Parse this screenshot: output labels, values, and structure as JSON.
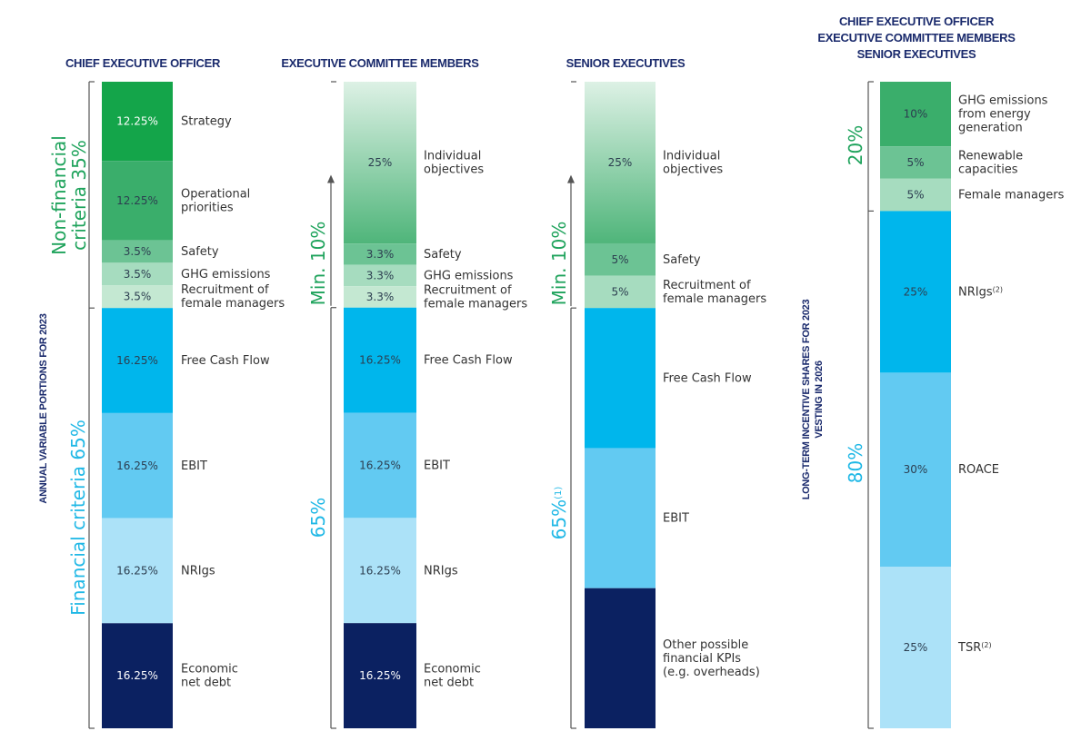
{
  "colors": {
    "green_dark": "#14a54a",
    "green_mid": "#3aae6b",
    "green_light": "#6cc394",
    "green_pale": "#a6dcbf",
    "green_paler": "#c4e8d2",
    "blue_cyan": "#00b6ec",
    "blue_sky": "#62caf2",
    "blue_pale": "#ace2f8",
    "navy": "#0b2161",
    "header": "#1a2a6c",
    "side_green": "#1fa35c",
    "side_blue": "#20b8e6"
  },
  "annual_axis_label": "ANNUAL VARIABLE PORTIONS FOR 2023",
  "long_term_axis_label_1": "LONG-TERM INCENTIVE SHARES FOR 2023",
  "long_term_axis_label_2": "VESTING IN 2026",
  "chart_data": [
    {
      "type": "bar",
      "stacked": true,
      "title": "CHIEF EXECUTIVE OFFICER",
      "groups": [
        {
          "label": "Non-financial criteria 35%",
          "label_line1": "Non-financial",
          "label_line2": "criteria 35%",
          "color": "green"
        },
        {
          "label": "Financial criteria 65%",
          "color": "blue"
        }
      ],
      "segments": [
        {
          "name": "Strategy",
          "value": 12.25,
          "value_label": "12.25%",
          "lines": [
            "Strategy"
          ],
          "color": "#14a54a"
        },
        {
          "name": "Operational priorities",
          "value": 12.25,
          "value_label": "12.25%",
          "lines": [
            "Operational",
            "priorities"
          ],
          "color": "#3aae6b"
        },
        {
          "name": "Safety",
          "value": 3.5,
          "value_label": "3.5%",
          "lines": [
            "Safety"
          ],
          "color": "#6cc394"
        },
        {
          "name": "GHG emissions",
          "value": 3.5,
          "value_label": "3.5%",
          "lines": [
            "GHG emissions"
          ],
          "color": "#a6dcbf"
        },
        {
          "name": "Recruitment of female managers",
          "value": 3.5,
          "value_label": "3.5%",
          "lines": [
            "Recruitment of",
            "female managers"
          ],
          "color": "#c4e8d2"
        },
        {
          "name": "Free Cash Flow",
          "value": 16.25,
          "value_label": "16.25%",
          "lines": [
            "Free Cash Flow"
          ],
          "color": "#00b6ec"
        },
        {
          "name": "EBIT",
          "value": 16.25,
          "value_label": "16.25%",
          "lines": [
            "EBIT"
          ],
          "color": "#62caf2"
        },
        {
          "name": "NRIgs",
          "value": 16.25,
          "value_label": "16.25%",
          "lines": [
            "NRIgs"
          ],
          "color": "#ace2f8"
        },
        {
          "name": "Economic net debt",
          "value": 16.25,
          "value_label": "16.25%",
          "lines": [
            "Economic",
            "net debt"
          ],
          "color": "#0b2161"
        }
      ]
    },
    {
      "type": "bar",
      "stacked": true,
      "title": "EXECUTIVE COMMITTEE MEMBERS",
      "groups": [
        {
          "label": "Min. 10%",
          "color": "green"
        },
        {
          "label": "65%",
          "color": "blue"
        }
      ],
      "segments": [
        {
          "name": "Individual objectives",
          "value": 25,
          "value_label": "25%",
          "lines": [
            "Individual",
            "objectives"
          ],
          "color": "gradient"
        },
        {
          "name": "Safety",
          "value": 3.3,
          "value_label": "3.3%",
          "lines": [
            "Safety"
          ],
          "color": "#6cc394"
        },
        {
          "name": "GHG emissions",
          "value": 3.3,
          "value_label": "3.3%",
          "lines": [
            "GHG emissions"
          ],
          "color": "#a6dcbf"
        },
        {
          "name": "Recruitment of female managers",
          "value": 3.3,
          "value_label": "3.3%",
          "lines": [
            "Recruitment of",
            "female managers"
          ],
          "color": "#c4e8d2"
        },
        {
          "name": "Free Cash Flow",
          "value": 16.25,
          "value_label": "16.25%",
          "lines": [
            "Free Cash Flow"
          ],
          "color": "#00b6ec"
        },
        {
          "name": "EBIT",
          "value": 16.25,
          "value_label": "16.25%",
          "lines": [
            "EBIT"
          ],
          "color": "#62caf2"
        },
        {
          "name": "NRIgs",
          "value": 16.25,
          "value_label": "16.25%",
          "lines": [
            "NRIgs"
          ],
          "color": "#ace2f8"
        },
        {
          "name": "Economic net debt",
          "value": 16.25,
          "value_label": "16.25%",
          "lines": [
            "Economic",
            "net debt"
          ],
          "color": "#0b2161"
        }
      ]
    },
    {
      "type": "bar",
      "stacked": true,
      "title": "SENIOR EXECUTIVES",
      "groups": [
        {
          "label": "Min. 10%",
          "color": "green"
        },
        {
          "label": "65%",
          "label_sup": "(1)",
          "color": "blue"
        }
      ],
      "segments": [
        {
          "name": "Individual objectives",
          "value": 25,
          "value_label": "25%",
          "lines": [
            "Individual",
            "objectives"
          ],
          "color": "gradient"
        },
        {
          "name": "Safety",
          "value": 5,
          "value_label": "5%",
          "lines": [
            "Safety"
          ],
          "color": "#6cc394"
        },
        {
          "name": "Recruitment of female managers",
          "value": 5,
          "value_label": "5%",
          "lines": [
            "Recruitment of",
            "female managers"
          ],
          "color": "#a6dcbf"
        },
        {
          "name": "Free Cash Flow",
          "value": 21.67,
          "value_label": "",
          "lines": [
            "Free Cash Flow"
          ],
          "color": "#00b6ec"
        },
        {
          "name": "EBIT",
          "value": 21.67,
          "value_label": "",
          "lines": [
            "EBIT"
          ],
          "color": "#62caf2"
        },
        {
          "name": "Other possible financial KPIs (e.g. overheads)",
          "value": 21.67,
          "value_label": "",
          "lines": [
            "Other possible",
            "financial KPIs",
            "(e.g. overheads)"
          ],
          "color": "#0b2161"
        }
      ]
    },
    {
      "type": "bar",
      "stacked": true,
      "title": "CHIEF EXECUTIVE OFFICER / EXECUTIVE COMMITTEE MEMBERS / SENIOR EXECUTIVES",
      "title_lines": [
        "CHIEF EXECUTIVE OFFICER",
        "EXECUTIVE COMMITTEE MEMBERS",
        "SENIOR EXECUTIVES"
      ],
      "groups": [
        {
          "label": "20%",
          "color": "green"
        },
        {
          "label": "80%",
          "color": "blue"
        }
      ],
      "segments": [
        {
          "name": "GHG emissions from energy generation",
          "value": 10,
          "value_label": "10%",
          "lines": [
            "GHG emissions",
            "from energy",
            "generation"
          ],
          "color": "#3aae6b"
        },
        {
          "name": "Renewable capacities",
          "value": 5,
          "value_label": "5%",
          "lines": [
            "Renewable",
            "capacities"
          ],
          "color": "#6cc394"
        },
        {
          "name": "Female managers",
          "value": 5,
          "value_label": "5%",
          "lines": [
            "Female managers"
          ],
          "color": "#a6dcbf"
        },
        {
          "name": "NRIgs",
          "value": 25,
          "value_label": "25%",
          "lines": [
            "NRIgs"
          ],
          "sup": "(2)",
          "color": "#00b6ec"
        },
        {
          "name": "ROACE",
          "value": 30,
          "value_label": "30%",
          "lines": [
            "ROACE"
          ],
          "color": "#62caf2"
        },
        {
          "name": "TSR",
          "value": 25,
          "value_label": "25%",
          "lines": [
            "TSR"
          ],
          "sup": "(2)",
          "color": "#ace2f8"
        }
      ]
    }
  ]
}
